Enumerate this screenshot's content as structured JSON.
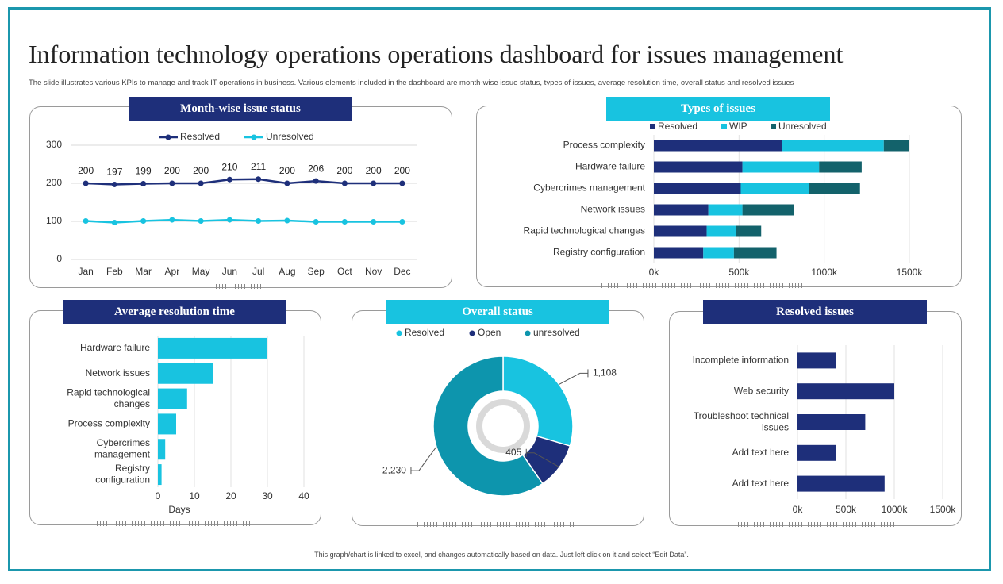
{
  "title": "Information technology operations operations dashboard for issues management",
  "subtitle": "The slide illustrates various KPIs to manage and track IT operations in business. Various elements included in the dashboard are month-wise issue status, types of issues, average resolution time, overall status and resolved issues",
  "footnote": "This graph/chart is linked to excel, and changes automatically based on data. Just left click on it and select “Edit Data”.",
  "panels": {
    "month": "Month-wise issue status",
    "types": "Types of issues",
    "avg": "Average resolution time",
    "overall": "Overall status",
    "resolved": "Resolved issues"
  },
  "colors": {
    "navy": "#1e2f7a",
    "cyan": "#18c3e0",
    "teal": "#0d95ad",
    "darkteal": "#13626b",
    "frame": "#1b97ad"
  },
  "chart_data": [
    {
      "id": "month",
      "type": "line",
      "categories": [
        "Jan",
        "Feb",
        "Mar",
        "Apr",
        "May",
        "Jun",
        "Jul",
        "Aug",
        "Sep",
        "Oct",
        "Nov",
        "Dec"
      ],
      "series": [
        {
          "name": "Resolved",
          "values": [
            200,
            197,
            199,
            200,
            200,
            210,
            211,
            200,
            206,
            200,
            200,
            200
          ]
        },
        {
          "name": "Unresolved",
          "values": [
            101,
            97,
            101,
            104,
            101,
            104,
            101,
            102,
            99,
            99,
            99,
            99
          ]
        }
      ],
      "yticks": [
        0,
        100,
        200,
        300
      ],
      "ylim": [
        0,
        300
      ],
      "grid": true,
      "data_labels_series": "Resolved",
      "legend": "top"
    },
    {
      "id": "types",
      "type": "bar",
      "orientation": "horizontal",
      "stacked": true,
      "categories": [
        "Process complexity",
        "Hardware failure",
        "Cybercrimes management",
        "Network issues",
        "Rapid technological changes",
        "Registry configuration"
      ],
      "series": [
        {
          "name": "Resolved",
          "values": [
            750,
            520,
            510,
            320,
            310,
            290
          ]
        },
        {
          "name": "WIP",
          "values": [
            600,
            450,
            400,
            200,
            170,
            180
          ]
        },
        {
          "name": "Unresolved",
          "values": [
            150,
            250,
            300,
            300,
            150,
            250
          ]
        }
      ],
      "xticks": [
        "0k",
        "500k",
        "1000k",
        "1500k"
      ],
      "xlim": [
        0,
        1500
      ],
      "grid": true,
      "legend": "top"
    },
    {
      "id": "avg",
      "type": "bar",
      "orientation": "horizontal",
      "categories": [
        "Hardware failure",
        "Network issues",
        "Rapid technological changes",
        "Process complexity",
        "Cybercrimes management",
        "Registry configuration"
      ],
      "values": [
        30,
        15,
        8,
        5,
        2,
        1
      ],
      "xticks": [
        "0",
        "10",
        "20",
        "30",
        "40"
      ],
      "xlim": [
        0,
        40
      ],
      "xlabel": "Days",
      "grid": true
    },
    {
      "id": "overall",
      "type": "pie",
      "donut": true,
      "labels": [
        "Resolved",
        "Open",
        "unresolved"
      ],
      "values": [
        1108,
        405,
        2230
      ],
      "value_labels": [
        "1,108",
        "405",
        "2,230"
      ],
      "legend": "top"
    },
    {
      "id": "resolved",
      "type": "bar",
      "orientation": "horizontal",
      "categories": [
        "Incomplete information",
        "Web security",
        "Troubleshoot technical issues",
        "Add text here",
        "Add text here"
      ],
      "values": [
        400,
        1000,
        700,
        400,
        900
      ],
      "xticks": [
        "0k",
        "500k",
        "1000k",
        "1500k"
      ],
      "xlim": [
        0,
        1500
      ],
      "grid": true
    }
  ]
}
